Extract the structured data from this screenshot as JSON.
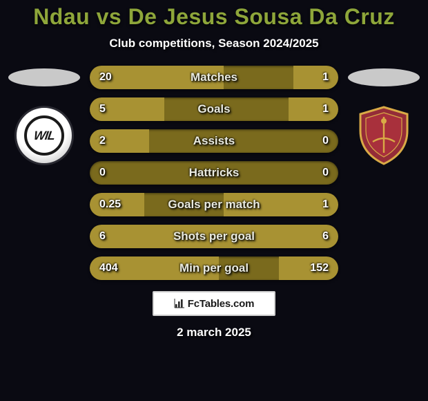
{
  "header": {
    "title": "Ndau vs De Jesus Sousa Da Cruz",
    "subtitle": "Club competitions, Season 2024/2025",
    "title_color": "#8ea63a"
  },
  "players": {
    "left": {
      "name": "Ndau",
      "club_badge": "wil-logo"
    },
    "right": {
      "name": "De Jesus Sousa Da Cruz",
      "club_badge": "acb-shield"
    }
  },
  "stats": {
    "bar_empty_color": "#7a6a1d",
    "bar_fill_color": "#a89233",
    "rows": [
      {
        "label": "Matches",
        "left": "20",
        "right": "1",
        "left_pct": 54,
        "right_pct": 18
      },
      {
        "label": "Goals",
        "left": "5",
        "right": "1",
        "left_pct": 30,
        "right_pct": 20
      },
      {
        "label": "Assists",
        "left": "2",
        "right": "0",
        "left_pct": 24,
        "right_pct": 0
      },
      {
        "label": "Hattricks",
        "left": "0",
        "right": "0",
        "left_pct": 0,
        "right_pct": 0
      },
      {
        "label": "Goals per match",
        "left": "0.25",
        "right": "1",
        "left_pct": 22,
        "right_pct": 46
      },
      {
        "label": "Shots per goal",
        "left": "6",
        "right": "6",
        "left_pct": 50,
        "right_pct": 50
      },
      {
        "label": "Min per goal",
        "left": "404",
        "right": "152",
        "left_pct": 52,
        "right_pct": 24
      }
    ]
  },
  "branding": {
    "text": "FcTables.com",
    "icon": "bar-chart-icon",
    "border_color": "#cfcfcf"
  },
  "footer": {
    "date": "2 march 2025"
  },
  "colors": {
    "background": "#0a0a12",
    "text_white": "#ffffff",
    "ellipse": "#c9c9c9"
  }
}
